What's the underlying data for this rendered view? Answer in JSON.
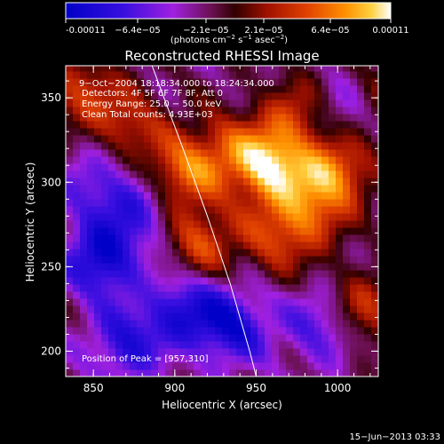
{
  "colorbar": {
    "ticks": [
      "-0.00011",
      "−6.4e−05",
      "−2.1e−05",
      "2.1e−05",
      "6.4e−05",
      "0.00011"
    ],
    "units_prefix": "(photons cm",
    "units_exp1": "−2",
    "units_mid": " s",
    "units_exp2": "−1",
    "units_mid2": " asec",
    "units_exp3": "−2",
    "units_suffix": ")",
    "range": [
      -0.00011,
      0.00011
    ],
    "colors": [
      "#0000c8",
      "#3a0fe0",
      "#a020e0",
      "#7a1060",
      "#300000",
      "#a01000",
      "#e04000",
      "#ff9000",
      "#ffd040",
      "#ffffff"
    ]
  },
  "annotations": {
    "time": "9−Oct−2004 18:18:34.000 to 18:24:34.000",
    "detectors": "Detectors: 4F 5F 6F 7F 8F, Att 0",
    "energy": "Energy Range: 25.0 − 50.0 keV",
    "clean": "Clean     Total counts: 4.93E+03",
    "peak": "Position of Peak = [957,310]"
  },
  "footer_timestamp": "15−Jun−2013 03:33",
  "chart_data": {
    "type": "heatmap",
    "title": "Reconstructed RHESSI Image",
    "xlabel": "Heliocentric X (arcsec)",
    "ylabel": "Heliocentric Y (arcsec)",
    "xlim": [
      833,
      1025
    ],
    "ylim": [
      185,
      369
    ],
    "x_ticks": [
      850,
      900,
      950,
      1000
    ],
    "y_ticks": [
      200,
      250,
      300,
      350
    ],
    "peak": [
      957,
      310
    ],
    "limb_curve": [
      [
        886,
        369
      ],
      [
        905,
        320
      ],
      [
        920,
        280
      ],
      [
        934,
        240
      ],
      [
        946,
        200
      ],
      [
        950,
        185
      ]
    ],
    "hot_spots": [
      {
        "x": 957,
        "y": 310,
        "level": 1.0
      },
      {
        "x": 998,
        "y": 306,
        "level": 0.85
      },
      {
        "x": 902,
        "y": 305,
        "level": 0.7
      },
      {
        "x": 915,
        "y": 265,
        "level": 0.6
      },
      {
        "x": 980,
        "y": 280,
        "level": 0.55
      },
      {
        "x": 870,
        "y": 335,
        "level": 0.5
      },
      {
        "x": 1015,
        "y": 225,
        "level": 0.55
      },
      {
        "x": 960,
        "y": 265,
        "level": 0.4
      },
      {
        "x": 928,
        "y": 320,
        "level": 0.45
      },
      {
        "x": 840,
        "y": 355,
        "level": 0.5
      },
      {
        "x": 975,
        "y": 340,
        "level": 0.5
      },
      {
        "x": 1020,
        "y": 345,
        "level": 0.4
      }
    ],
    "cold_spots": [
      {
        "x": 855,
        "y": 255,
        "level": -0.8
      },
      {
        "x": 870,
        "y": 205,
        "level": -0.6
      },
      {
        "x": 935,
        "y": 215,
        "level": -0.7
      },
      {
        "x": 990,
        "y": 215,
        "level": -0.5
      },
      {
        "x": 880,
        "y": 285,
        "level": -0.5
      },
      {
        "x": 1005,
        "y": 340,
        "level": -0.5
      },
      {
        "x": 905,
        "y": 225,
        "level": -0.6
      },
      {
        "x": 850,
        "y": 300,
        "level": -0.4
      }
    ]
  }
}
